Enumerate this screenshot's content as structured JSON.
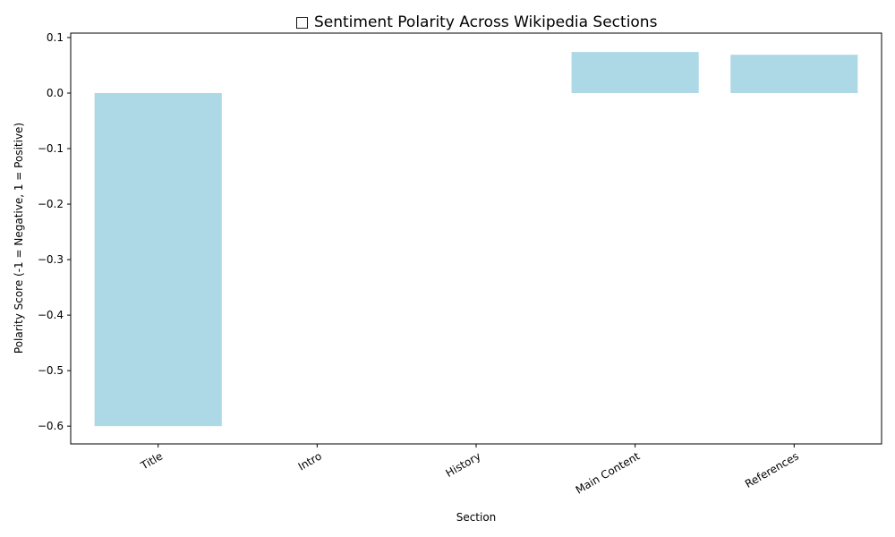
{
  "chart_data": {
    "type": "bar",
    "title": "□ Sentiment Polarity Across Wikipedia Sections",
    "xlabel": "Section",
    "ylabel": "Polarity Score (-1 = Negative, 1 = Positive)",
    "categories": [
      "Title",
      "Intro",
      "History",
      "Main Content",
      "References"
    ],
    "values": [
      -0.6,
      0.0,
      0.0,
      0.074,
      0.069
    ],
    "ylim": [
      -0.632,
      0.108
    ],
    "yticks": [
      0.1,
      0.0,
      -0.1,
      -0.2,
      -0.3,
      -0.4,
      -0.5,
      -0.6
    ],
    "ytick_labels": [
      "0.1",
      "0.0",
      "−0.1",
      "−0.2",
      "−0.3",
      "−0.4",
      "−0.5",
      "−0.6"
    ],
    "bar_color": "#add8e6",
    "grid": false,
    "x_tick_rotation": 30
  }
}
